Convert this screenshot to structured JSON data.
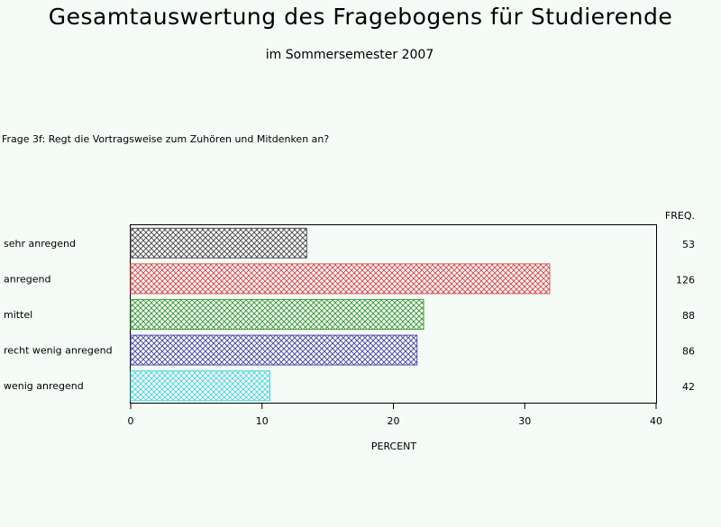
{
  "header": {
    "title": "Gesamtauswertung des Fragebogens für Studierende",
    "subtitle": "im Sommersemester 2007",
    "question": "Frage 3f: Regt die Vortragsweise zum Zuhören und Mitdenken an?"
  },
  "chart_data": {
    "type": "bar",
    "orientation": "horizontal",
    "categories": [
      "sehr anregend",
      "anregend",
      "mittel",
      "recht wenig anregend",
      "wenig anregend"
    ],
    "values": [
      13.4,
      31.9,
      22.3,
      21.8,
      10.6
    ],
    "freq": [
      "53",
      "126",
      "88",
      "86",
      "42"
    ],
    "freq_label": "FREQ.",
    "xlabel": "PERCENT",
    "xlim": [
      0,
      40
    ],
    "xticks": [
      0,
      10,
      20,
      30,
      40
    ],
    "colors": [
      "#555555",
      "#e05050",
      "#40a040",
      "#5050b0",
      "#50d8e0"
    ],
    "pattern": "crosshatch",
    "grid": false
  }
}
